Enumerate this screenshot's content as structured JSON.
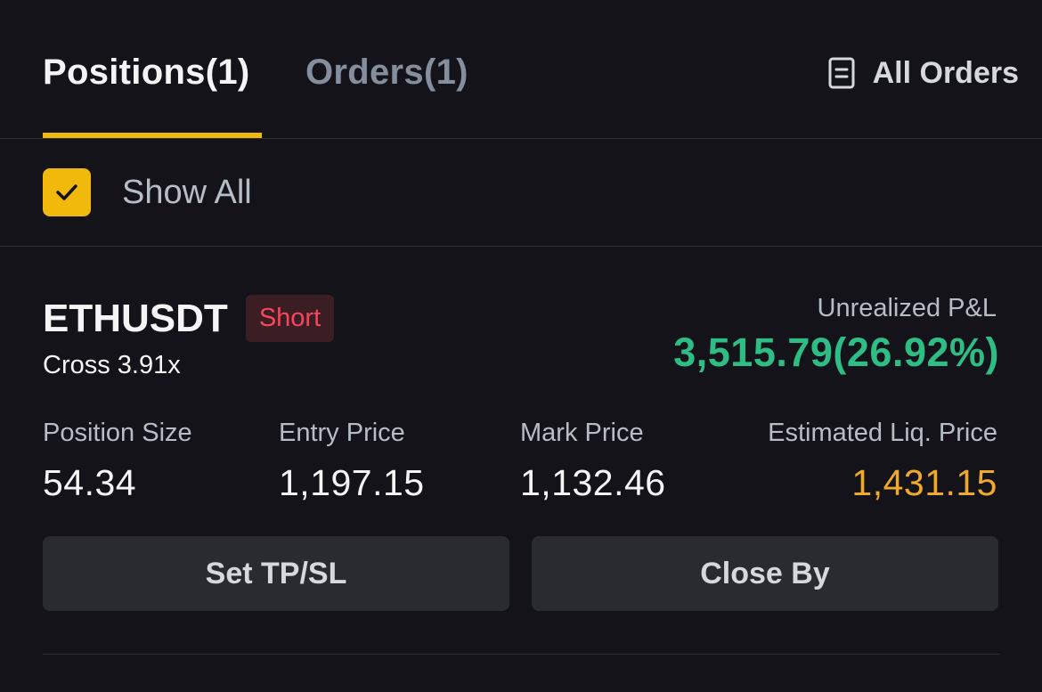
{
  "tabs": {
    "positions_label": "Positions(1)",
    "orders_label": "Orders(1)",
    "active": "positions",
    "all_orders_label": "All Orders"
  },
  "filter": {
    "show_all_label": "Show All",
    "show_all_checked": true
  },
  "position": {
    "symbol": "ETHUSDT",
    "side": "Short",
    "margin_mode": "Cross 3.91x",
    "unrealized_pnl_label": "Unrealized P&L",
    "unrealized_pnl_value": "3,515.79(26.92%)",
    "stats": [
      {
        "label": "Position Size",
        "value": "54.34"
      },
      {
        "label": "Entry Price",
        "value": "1,197.15"
      },
      {
        "label": "Mark Price",
        "value": "1,132.46"
      },
      {
        "label": "Estimated Liq. Price",
        "value": "1,431.15"
      }
    ],
    "actions": {
      "tpsl_label": "Set TP/SL",
      "close_label": "Close By"
    }
  },
  "colors": {
    "background": "#131319",
    "accent": "#f0b90b",
    "profit": "#2ebd85",
    "short": "#f6465d",
    "liq_price": "#f0a92a"
  },
  "icons": {
    "all_orders": "document-list-icon",
    "checkbox": "checkmark-icon"
  }
}
